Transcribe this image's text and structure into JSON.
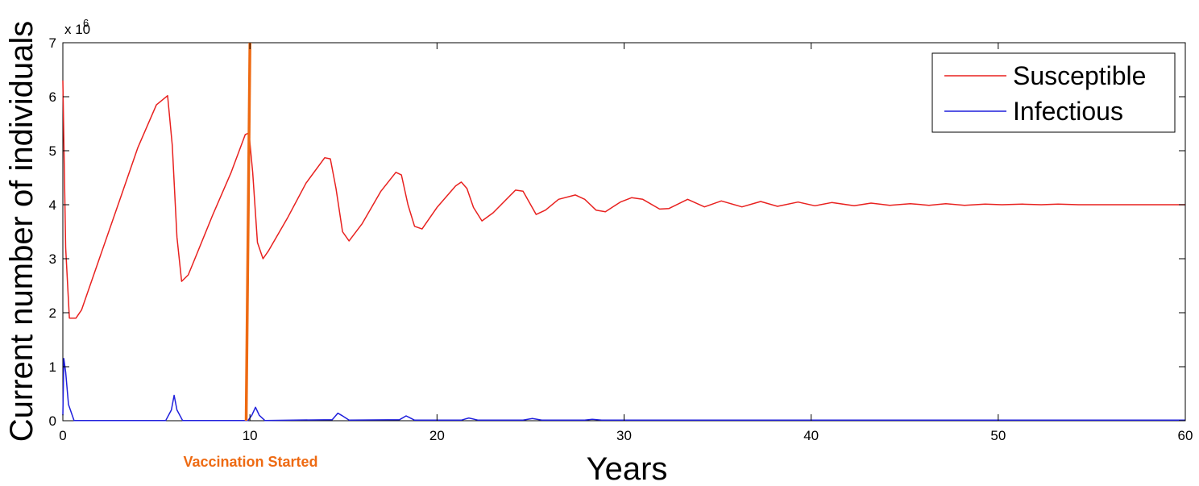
{
  "chart_data": {
    "type": "line",
    "title": "",
    "xlabel": "Years",
    "ylabel": "Current number of individuals",
    "y_exponent_label": "x 10",
    "y_exponent_power": "6",
    "xlim": [
      0,
      60
    ],
    "ylim": [
      0,
      7
    ],
    "x_ticks": [
      0,
      10,
      20,
      30,
      40,
      50,
      60
    ],
    "y_ticks": [
      0,
      1,
      2,
      3,
      4,
      5,
      6,
      7
    ],
    "grid": false,
    "legend_position": "top-right",
    "series": [
      {
        "name": "Susceptible",
        "color": "#e8211f",
        "x": [
          0,
          0.15,
          0.35,
          0.7,
          1,
          2,
          3,
          4,
          5,
          5.6,
          5.85,
          6.1,
          6.35,
          6.7,
          7,
          8,
          9,
          9.75,
          9.95,
          10.15,
          10.4,
          10.7,
          11,
          12,
          13,
          14,
          14.3,
          14.6,
          14.95,
          15.3,
          16,
          17,
          17.8,
          18.1,
          18.45,
          18.8,
          19.2,
          20,
          21,
          21.3,
          21.6,
          21.95,
          22.4,
          23,
          24.2,
          24.6,
          25.3,
          25.8,
          26.5,
          27.4,
          27.9,
          28.5,
          29,
          29.8,
          30.4,
          31,
          31.9,
          32.4,
          33.4,
          34.3,
          35.2,
          36.3,
          37.3,
          38.2,
          39.3,
          40.2,
          41.1,
          42.3,
          43.2,
          44.2,
          45.3,
          46.3,
          47.2,
          48.2,
          49.3,
          50.2,
          51.3,
          52.3,
          53.2,
          54.3,
          55.3,
          57,
          60
        ],
        "values": [
          6.3,
          3.2,
          1.9,
          1.9,
          2.05,
          3.05,
          4.05,
          5.05,
          5.85,
          6.02,
          5.1,
          3.4,
          2.58,
          2.7,
          2.95,
          3.8,
          4.6,
          5.3,
          5.33,
          4.6,
          3.3,
          3.0,
          3.15,
          3.75,
          4.4,
          4.87,
          4.85,
          4.3,
          3.5,
          3.33,
          3.65,
          4.25,
          4.6,
          4.55,
          4.0,
          3.6,
          3.55,
          3.95,
          4.35,
          4.42,
          4.3,
          3.95,
          3.7,
          3.85,
          4.27,
          4.25,
          3.82,
          3.9,
          4.1,
          4.18,
          4.1,
          3.9,
          3.87,
          4.05,
          4.13,
          4.1,
          3.92,
          3.93,
          4.1,
          3.96,
          4.07,
          3.96,
          4.06,
          3.97,
          4.05,
          3.98,
          4.04,
          3.98,
          4.03,
          3.99,
          4.02,
          3.99,
          4.02,
          3.99,
          4.01,
          4.0,
          4.01,
          4.0,
          4.01,
          4.0,
          4.0,
          4.0,
          4.0
        ]
      },
      {
        "name": "Infectious",
        "color": "#1f1fdc",
        "x": [
          0,
          0.05,
          0.15,
          0.3,
          0.6,
          5.5,
          5.8,
          5.95,
          6.1,
          6.4,
          9.9,
          10.1,
          10.3,
          10.5,
          10.8,
          14.4,
          14.7,
          14.9,
          15.3,
          18.0,
          18.35,
          18.8,
          21.3,
          21.7,
          22.2,
          24.6,
          25.1,
          25.6,
          27.9,
          28.3,
          28.8,
          60
        ],
        "values": [
          0.1,
          1.15,
          0.9,
          0.3,
          0.005,
          0.005,
          0.2,
          0.47,
          0.2,
          0.005,
          0.005,
          0.1,
          0.25,
          0.1,
          0.005,
          0.02,
          0.14,
          0.1,
          0.01,
          0.02,
          0.09,
          0.01,
          0.01,
          0.05,
          0.01,
          0.01,
          0.04,
          0.01,
          0.01,
          0.025,
          0.01,
          0.01
        ]
      },
      {
        "name": "",
        "color": "#ee6a12",
        "x": [
          9.8,
          10.0
        ],
        "values": [
          0,
          7
        ]
      }
    ],
    "annotations": [
      {
        "text": "Vaccination Started",
        "x": 10,
        "color": "#ee6a12"
      }
    ]
  }
}
